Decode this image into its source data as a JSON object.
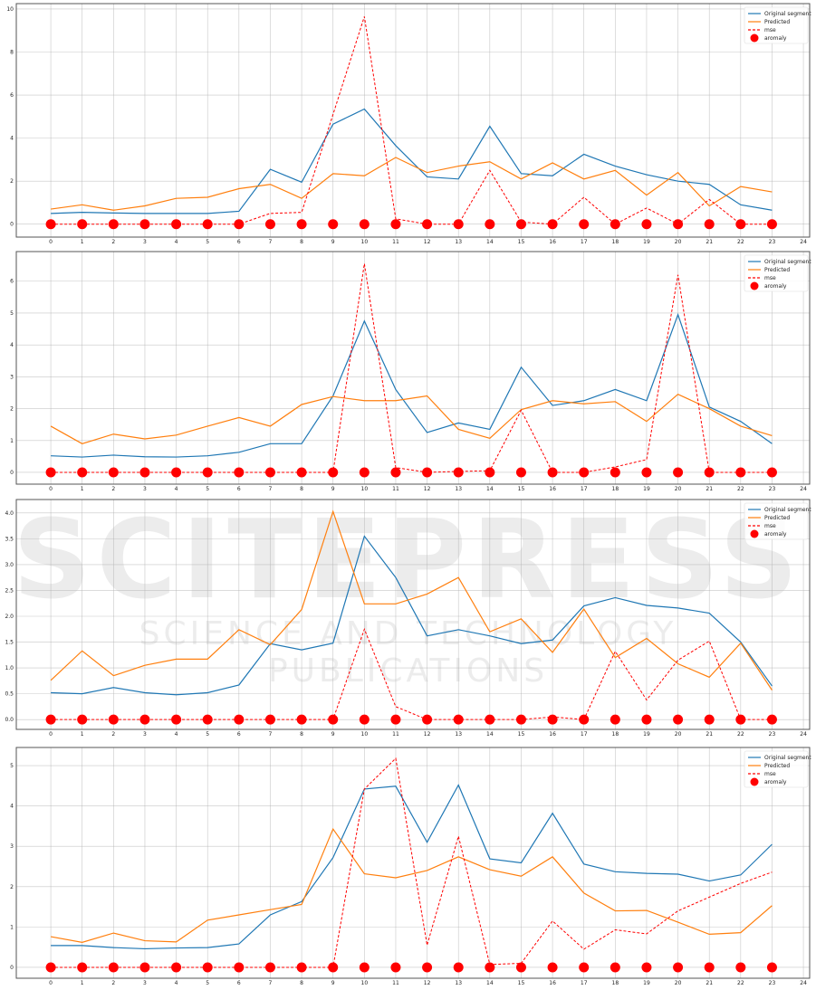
{
  "watermark": {
    "line1": "SCITEPRESS",
    "line2": "SCIENCE AND TECHNOLOGY PUBLICATIONS"
  },
  "colors": {
    "original": "#1f77b4",
    "predicted": "#ff7f0e",
    "mse": "#ff0000",
    "anomaly": "#ff0000",
    "grid": "#b0b0b0"
  },
  "legend": {
    "placement": "top-right",
    "entries": [
      "Original segment",
      "Predicted",
      "mse",
      "aromaly"
    ]
  },
  "chart_data": [
    {
      "type": "line",
      "grid": true,
      "x": [
        0,
        1,
        2,
        3,
        4,
        5,
        6,
        7,
        8,
        9,
        10,
        11,
        12,
        13,
        14,
        15,
        16,
        17,
        18,
        19,
        20,
        21,
        22,
        23
      ],
      "xticks": [
        0,
        1,
        2,
        3,
        4,
        5,
        6,
        7,
        8,
        9,
        10,
        11,
        12,
        13,
        14,
        15,
        16,
        17,
        18,
        19,
        20,
        21,
        22,
        23,
        24
      ],
      "yticks": [
        "0",
        "2",
        "4",
        "6",
        "8",
        "10"
      ],
      "ytick_values": [
        0,
        2,
        4,
        6,
        8,
        10
      ],
      "xlim": [
        -1.1,
        24.2
      ],
      "ylim": [
        -0.6,
        10.25
      ],
      "series": [
        {
          "name": "Original segment",
          "values": [
            0.5,
            0.55,
            0.52,
            0.5,
            0.5,
            0.5,
            0.6,
            2.55,
            1.95,
            4.65,
            5.35,
            3.65,
            2.2,
            2.1,
            4.55,
            2.35,
            2.25,
            3.25,
            2.7,
            2.3,
            2.0,
            1.85,
            0.9,
            0.65
          ]
        },
        {
          "name": "Predicted",
          "values": [
            0.7,
            0.9,
            0.65,
            0.85,
            1.2,
            1.25,
            1.65,
            1.85,
            1.2,
            2.35,
            2.25,
            3.1,
            2.4,
            2.7,
            2.9,
            2.1,
            2.85,
            2.1,
            2.5,
            1.35,
            2.4,
            0.85,
            1.75,
            1.5
          ]
        },
        {
          "name": "mse",
          "values": [
            0,
            0,
            0,
            0,
            0,
            0,
            0,
            0.5,
            0.55,
            5.1,
            9.65,
            0.25,
            0,
            0,
            2.5,
            0.1,
            0,
            1.25,
            0,
            0.75,
            0,
            1.15,
            0,
            0
          ]
        },
        {
          "name": "aromaly",
          "values": [
            0,
            0,
            0,
            0,
            0,
            0,
            0,
            0,
            0,
            0,
            0,
            0,
            0,
            0,
            0,
            0,
            0,
            0,
            0,
            0,
            0,
            0,
            0,
            0
          ]
        }
      ]
    },
    {
      "type": "line",
      "grid": true,
      "x": [
        0,
        1,
        2,
        3,
        4,
        5,
        6,
        7,
        8,
        9,
        10,
        11,
        12,
        13,
        14,
        15,
        16,
        17,
        18,
        19,
        20,
        21,
        22,
        23
      ],
      "xticks": [
        0,
        1,
        2,
        3,
        4,
        5,
        6,
        7,
        8,
        9,
        10,
        11,
        12,
        13,
        14,
        15,
        16,
        17,
        18,
        19,
        20,
        21,
        22,
        23,
        24
      ],
      "yticks": [
        "0",
        "1",
        "2",
        "3",
        "4",
        "5",
        "6"
      ],
      "ytick_values": [
        0,
        1,
        2,
        3,
        4,
        5,
        6
      ],
      "xlim": [
        -1.1,
        24.2
      ],
      "ylim": [
        -0.37,
        6.93
      ],
      "series": [
        {
          "name": "Original segment",
          "values": [
            0.52,
            0.48,
            0.54,
            0.49,
            0.48,
            0.52,
            0.63,
            0.9,
            0.9,
            2.4,
            4.75,
            2.6,
            1.25,
            1.55,
            1.35,
            3.3,
            2.1,
            2.25,
            2.6,
            2.25,
            4.95,
            2.05,
            1.6,
            0.9
          ]
        },
        {
          "name": "Predicted",
          "values": [
            1.45,
            0.9,
            1.2,
            1.05,
            1.17,
            1.45,
            1.72,
            1.45,
            2.13,
            2.38,
            2.25,
            2.25,
            2.4,
            1.35,
            1.07,
            1.97,
            2.25,
            2.15,
            2.22,
            1.6,
            2.45,
            2.0,
            1.45,
            1.15
          ]
        },
        {
          "name": "mse",
          "values": [
            0,
            0,
            0,
            0,
            0,
            0,
            0,
            0,
            0,
            0,
            6.55,
            0.15,
            0,
            0.03,
            0.05,
            1.95,
            0,
            0,
            0.17,
            0.4,
            6.2,
            0,
            0,
            0
          ]
        },
        {
          "name": "aromaly",
          "values": [
            0,
            0,
            0,
            0,
            0,
            0,
            0,
            0,
            0,
            0,
            0,
            0,
            0,
            0,
            0,
            0,
            0,
            0,
            0,
            0,
            0,
            0,
            0,
            0
          ]
        }
      ]
    },
    {
      "type": "line",
      "grid": true,
      "x": [
        0,
        1,
        2,
        3,
        4,
        5,
        6,
        7,
        8,
        9,
        10,
        11,
        12,
        13,
        14,
        15,
        16,
        17,
        18,
        19,
        20,
        21,
        22,
        23
      ],
      "xticks": [
        0,
        1,
        2,
        3,
        4,
        5,
        6,
        7,
        8,
        9,
        10,
        11,
        12,
        13,
        14,
        15,
        16,
        17,
        18,
        19,
        20,
        21,
        22,
        23,
        24
      ],
      "yticks": [
        "0.0",
        "0.5",
        "1.0",
        "1.5",
        "2.0",
        "2.5",
        "3.0",
        "3.5",
        "4.0"
      ],
      "ytick_values": [
        0,
        0.5,
        1,
        1.5,
        2,
        2.5,
        3,
        3.5,
        4
      ],
      "xlim": [
        -1.1,
        24.2
      ],
      "ylim": [
        -0.19,
        4.26
      ],
      "series": [
        {
          "name": "Original segment",
          "values": [
            0.52,
            0.5,
            0.62,
            0.52,
            0.48,
            0.52,
            0.67,
            1.47,
            1.35,
            1.48,
            3.55,
            2.75,
            1.62,
            1.74,
            1.62,
            1.47,
            1.54,
            2.2,
            2.36,
            2.21,
            2.16,
            2.06,
            1.5,
            0.65
          ]
        },
        {
          "name": "Predicted",
          "values": [
            0.76,
            1.33,
            0.85,
            1.05,
            1.17,
            1.17,
            1.74,
            1.45,
            2.13,
            4.03,
            2.24,
            2.24,
            2.43,
            2.75,
            1.7,
            1.95,
            1.3,
            2.14,
            1.2,
            1.57,
            1.08,
            0.82,
            1.48,
            0.57
          ]
        },
        {
          "name": "mse",
          "values": [
            0,
            0,
            0,
            0,
            0,
            0,
            0,
            0,
            0,
            0,
            1.75,
            0.25,
            0,
            0,
            0,
            0,
            0.05,
            0,
            1.32,
            0.38,
            1.15,
            1.52,
            0,
            0
          ]
        },
        {
          "name": "aromaly",
          "values": [
            0,
            0,
            0,
            0,
            0,
            0,
            0,
            0,
            0,
            0,
            0,
            0,
            0,
            0,
            0,
            0,
            0,
            0,
            0,
            0,
            0,
            0,
            0,
            0
          ]
        }
      ]
    },
    {
      "type": "line",
      "grid": true,
      "x": [
        0,
        1,
        2,
        3,
        4,
        5,
        6,
        7,
        8,
        9,
        10,
        11,
        12,
        13,
        14,
        15,
        16,
        17,
        18,
        19,
        20,
        21,
        22,
        23
      ],
      "xticks": [
        0,
        1,
        2,
        3,
        4,
        5,
        6,
        7,
        8,
        9,
        10,
        11,
        12,
        13,
        14,
        15,
        16,
        17,
        18,
        19,
        20,
        21,
        22,
        23,
        24
      ],
      "yticks": [
        "0",
        "1",
        "2",
        "3",
        "4",
        "5"
      ],
      "ytick_values": [
        0,
        1,
        2,
        3,
        4,
        5
      ],
      "xlim": [
        -1.1,
        24.2
      ],
      "ylim": [
        -0.27,
        5.45
      ],
      "series": [
        {
          "name": "Original segment",
          "values": [
            0.54,
            0.54,
            0.49,
            0.46,
            0.48,
            0.49,
            0.58,
            1.3,
            1.63,
            2.72,
            4.42,
            4.49,
            3.1,
            4.52,
            2.69,
            2.59,
            3.82,
            2.56,
            2.37,
            2.33,
            2.31,
            2.14,
            2.29,
            3.05
          ]
        },
        {
          "name": "Predicted",
          "values": [
            0.76,
            0.62,
            0.85,
            0.66,
            0.63,
            1.17,
            1.3,
            1.43,
            1.56,
            3.43,
            2.32,
            2.22,
            2.4,
            2.74,
            2.42,
            2.26,
            2.74,
            1.84,
            1.4,
            1.41,
            1.12,
            0.82,
            0.86,
            1.53
          ]
        },
        {
          "name": "mse",
          "values": [
            0,
            0,
            0,
            0,
            0,
            0,
            0,
            0,
            0,
            0,
            4.42,
            5.18,
            0.55,
            3.25,
            0.07,
            0.1,
            1.15,
            0.45,
            0.93,
            0.83,
            1.4,
            1.74,
            2.08,
            2.36
          ]
        },
        {
          "name": "aromaly",
          "values": [
            0,
            0,
            0,
            0,
            0,
            0,
            0,
            0,
            0,
            0,
            0,
            0,
            0,
            0,
            0,
            0,
            0,
            0,
            0,
            0,
            0,
            0,
            0,
            0
          ]
        }
      ]
    }
  ]
}
